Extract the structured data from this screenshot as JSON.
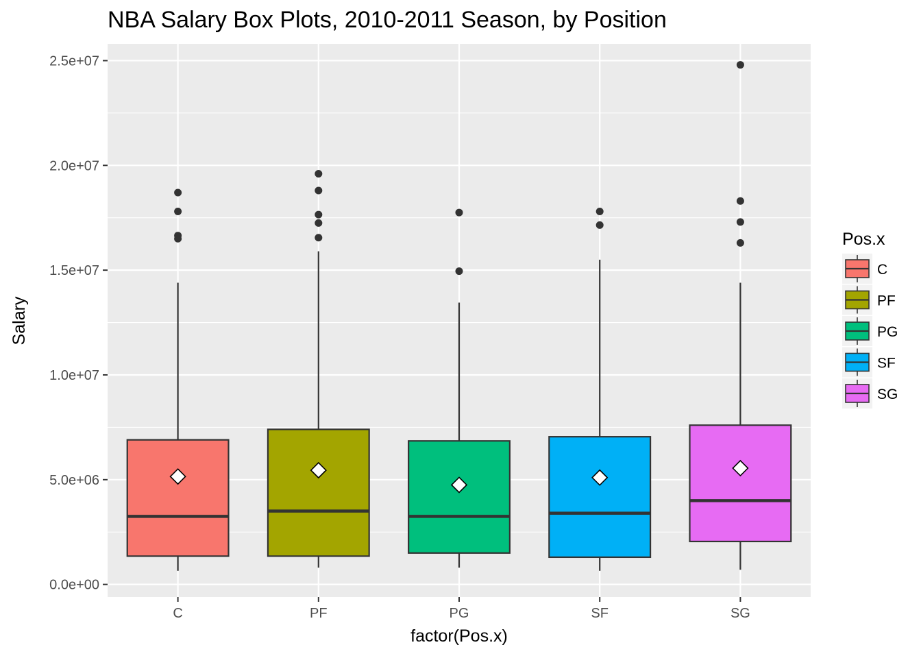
{
  "chart_data": {
    "type": "box",
    "title": "NBA Salary Box Plots, 2010-2011 Season, by Position",
    "xlabel": "factor(Pos.x)",
    "ylabel": "Salary",
    "ylim": [
      -600000,
      25800000
    ],
    "y_ticks": [
      0,
      5000000,
      10000000,
      15000000,
      20000000,
      25000000
    ],
    "y_tick_labels": [
      "0.0e+00",
      "5.0e+06",
      "1.0e+07",
      "1.5e+07",
      "2.0e+07",
      "2.5e+07"
    ],
    "categories": [
      "C",
      "PF",
      "PG",
      "SF",
      "SG"
    ],
    "grid": true,
    "legend": {
      "title": "Pos.x",
      "position": "right"
    },
    "series": [
      {
        "name": "C",
        "color": "#F8766D",
        "whisker_low": 650000,
        "q1": 1350000,
        "median": 3250000,
        "q3": 6900000,
        "whisker_high": 14400000,
        "mean": 5150000,
        "outliers": [
          18700000,
          17800000,
          16650000,
          16500000
        ]
      },
      {
        "name": "PF",
        "color": "#A3A500",
        "whisker_low": 800000,
        "q1": 1350000,
        "median": 3500000,
        "q3": 7400000,
        "whisker_high": 15900000,
        "mean": 5450000,
        "outliers": [
          19600000,
          18800000,
          17650000,
          17250000,
          16550000
        ]
      },
      {
        "name": "PG",
        "color": "#00BF7D",
        "whisker_low": 800000,
        "q1": 1500000,
        "median": 3250000,
        "q3": 6850000,
        "whisker_high": 13450000,
        "mean": 4750000,
        "outliers": [
          17750000,
          14950000
        ]
      },
      {
        "name": "SF",
        "color": "#00B0F6",
        "whisker_low": 650000,
        "q1": 1300000,
        "median": 3400000,
        "q3": 7050000,
        "whisker_high": 15500000,
        "mean": 5100000,
        "outliers": [
          17800000,
          17150000
        ]
      },
      {
        "name": "SG",
        "color": "#E76BF3",
        "whisker_low": 700000,
        "q1": 2050000,
        "median": 4000000,
        "q3": 7600000,
        "whisker_high": 14400000,
        "mean": 5550000,
        "outliers": [
          24800000,
          18300000,
          17300000,
          16300000
        ]
      }
    ]
  }
}
